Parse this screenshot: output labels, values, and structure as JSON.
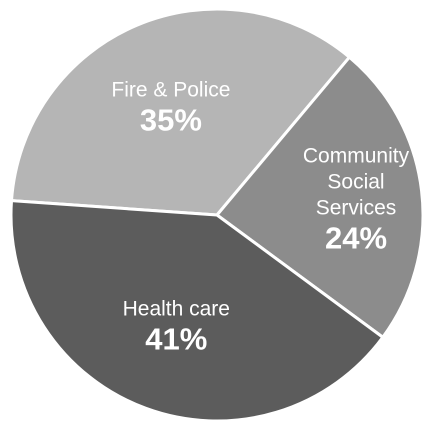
{
  "chart_data": {
    "type": "pie",
    "title": "",
    "slices": [
      {
        "label_lines": [
          "Fire & Police"
        ],
        "value": 35,
        "value_label": "35%",
        "color": "#b5b5b5"
      },
      {
        "label_lines": [
          "Community",
          "Social",
          "Services"
        ],
        "value": 24,
        "value_label": "24%",
        "color": "#8c8c8c"
      },
      {
        "label_lines": [
          "Health care"
        ],
        "value": 41,
        "value_label": "41%",
        "color": "#5c5c5c"
      }
    ],
    "start_position": "left, moving clockwise",
    "legend": "none"
  }
}
